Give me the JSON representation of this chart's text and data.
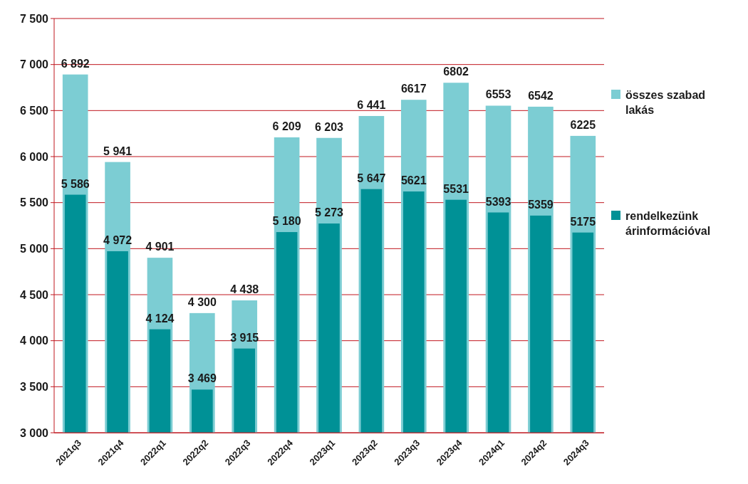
{
  "chart_data": {
    "type": "bar",
    "categories": [
      "2021q3",
      "2021q4",
      "2022q1",
      "2022q2",
      "2022q3",
      "2022q4",
      "2023q1",
      "2023q2",
      "2023q3",
      "2023q4",
      "2024q1",
      "2024q2",
      "2024q3"
    ],
    "series": [
      {
        "name": "összes szabad lakás",
        "color": "#7ccdd3",
        "values": [
          6892,
          5941,
          4901,
          4300,
          4438,
          6209,
          6203,
          6441,
          6617,
          6802,
          6553,
          6542,
          6225
        ],
        "value_labels": [
          "6 892",
          "5 941",
          "4 901",
          "4 300",
          "4 438",
          "6 209",
          "6 203",
          "6 441",
          "6617",
          "6802",
          "6553",
          "6542",
          "6225"
        ]
      },
      {
        "name": "rendelkezünk árinformációval",
        "color": "#009196",
        "values": [
          5586,
          4972,
          4124,
          3469,
          3915,
          5180,
          5273,
          5647,
          5621,
          5531,
          5393,
          5359,
          5175
        ],
        "value_labels": [
          "5 586",
          "4 972",
          "4 124",
          "3 469",
          "3 915",
          "5 180",
          "5 273",
          "5 647",
          "5621",
          "5531",
          "5393",
          "5359",
          "5175"
        ]
      }
    ],
    "ylim": [
      3000,
      7500
    ],
    "yticks": [
      {
        "value": 3000,
        "label": "3 000"
      },
      {
        "value": 3500,
        "label": "3 500"
      },
      {
        "value": 4000,
        "label": "4 000"
      },
      {
        "value": 4500,
        "label": "4 500"
      },
      {
        "value": 5000,
        "label": "5 000"
      },
      {
        "value": 5500,
        "label": "5 500"
      },
      {
        "value": 6000,
        "label": "6 000"
      },
      {
        "value": 6500,
        "label": "6 500"
      },
      {
        "value": 7000,
        "label": "7 000"
      },
      {
        "value": 7500,
        "label": "7 500"
      }
    ],
    "grid": "y",
    "legend": "right"
  }
}
